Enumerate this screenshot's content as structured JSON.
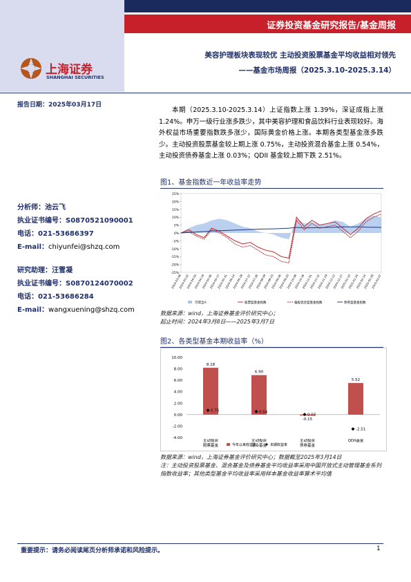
{
  "header": {
    "banner": "证券投资基金研究报告/基金周报",
    "logo_cn": "上海证券",
    "logo_en": "SHANGHAI SECURITIES",
    "title": "美容护理板块表现较优 主动投资股票基金平均收益相对领先",
    "subtitle": "——基金市场周报（2025.3.10-2025.3.14）",
    "report_date": "报告日期：2025年03月17日"
  },
  "analysts": [
    {
      "role": "分析师：池云飞",
      "cert": "执业证书编号：S0870521090001",
      "phone": "电话：021-53686397",
      "email_label": "E-mail：",
      "email": "chiyunfei@shzq.com"
    },
    {
      "role": "研究助理：汪雪凝",
      "cert": "执业证书编号：S0870124070002",
      "phone": "电话：021-53686284",
      "email_label": "E-mail：",
      "email": "wangxuening@shzq.com"
    }
  ],
  "summary": "本期（2025.3.10-2025.3.14）上证指数上涨 1.39%，深证成指上涨 1.24%。申万一级行业涨多跌少，其中美容护理和食品饮料行业表现较好。海外权益市场重要指数跌多涨少，国际黄金价格上涨。本期各类型基金涨多跌少。主动投资股票基金较上期上涨 0.75%，主动投资混合基金上涨 0.54%，主动投资债券基金上涨 0.03%；QDII 基金较上期下跌 2.51%。",
  "figure1": {
    "caption": "图1、基金指数近一年收益率走势",
    "source": "数据来源：wind，上海证券基金评价研究中心；",
    "period": "起止时间：2024年3月8日——2025年3月7日"
  },
  "figure2": {
    "caption": "图2、各类型基金本期收益率（%）",
    "source": "数据来源：wind，上海证券基金评价研究中心；数据截至2025年3月14日",
    "note": "注：主动投资股票基金、混合基金及债券基金平均收益率采用中国开放式主动管理基金系列指数收益率；其他类型基金平均收益率采用样本基金收益率算术平均值"
  },
  "footer": {
    "notice": "重要提示：请务必阅读尾页分析师承诺和风险提示。",
    "page": "1"
  },
  "chart_data": [
    {
      "type": "line",
      "categories": [
        "2024-03-08",
        "2024-03-22",
        "2024-04-03",
        "2024-04-19",
        "2024-05-06",
        "2024-05-17",
        "2024-05-31",
        "2024-06-14",
        "2024-06-28",
        "2024-07-12",
        "2024-07-26",
        "2024-08-09",
        "2024-08-23",
        "2024-09-06",
        "2024-09-20",
        "2024-10-08",
        "2024-10-18",
        "2024-11-01",
        "2024-11-15",
        "2024-11-29",
        "2024-12-13",
        "2024-12-27",
        "2025-01-10",
        "2025-01-24",
        "2025-02-14",
        "2025-02-28",
        "2025-03-07"
      ],
      "series": [
        {
          "name": "万得全A",
          "color": "#a9c4ea",
          "kind": "area",
          "values": [
            0,
            3,
            5,
            6,
            8,
            9,
            8,
            6,
            4,
            3,
            1,
            0,
            -1,
            -3,
            -4,
            9,
            6,
            7,
            5,
            6,
            8,
            7,
            4,
            6,
            9,
            11,
            10
          ]
        },
        {
          "name": "股票型基金指数",
          "color": "#c0282d",
          "values": [
            0,
            2,
            -1,
            -3,
            3,
            1,
            -2,
            -5,
            -7,
            -6,
            -9,
            -11,
            -12,
            -15,
            -16,
            10,
            4,
            8,
            5,
            6,
            7,
            3,
            -1,
            3,
            9,
            12,
            14
          ]
        },
        {
          "name": "偏股混合型基金指数",
          "color": "#c0282d",
          "dashed": true,
          "values": [
            0,
            1,
            -2,
            -4,
            2,
            0,
            -3,
            -7,
            -9,
            -8,
            -11,
            -14,
            -15,
            -18,
            -19,
            8,
            2,
            6,
            3,
            4,
            5,
            1,
            -3,
            1,
            7,
            10,
            12
          ]
        },
        {
          "name": "债券型基金指数",
          "color": "#1f3a7a",
          "values": [
            0,
            0.3,
            0.6,
            0.9,
            1.2,
            1.4,
            1.6,
            1.8,
            2,
            2.2,
            2.4,
            2.5,
            2.6,
            2.8,
            3,
            3.5,
            3.2,
            3.3,
            3.4,
            3.5,
            3.7,
            3.9,
            3.8,
            3.9,
            3.7,
            3.6,
            3.5
          ]
        }
      ],
      "ylim": [
        -25,
        25
      ],
      "yticks": [
        {
          "value": -25,
          "label": "-25%"
        },
        {
          "value": -20,
          "label": "-20%"
        },
        {
          "value": -15,
          "label": "-15%"
        },
        {
          "value": -10,
          "label": "-10%"
        },
        {
          "value": -5,
          "label": "-5%"
        },
        {
          "value": 0,
          "label": "0%"
        },
        {
          "value": 5,
          "label": "5%"
        },
        {
          "value": 10,
          "label": "10%"
        },
        {
          "value": 15,
          "label": "15%"
        },
        {
          "value": 20,
          "label": "20%"
        },
        {
          "value": 25,
          "label": "25%"
        }
      ],
      "grid": false,
      "legend": "bottom"
    },
    {
      "type": "bar",
      "categories": [
        "主动投资股票基金",
        "主动投资混合基金",
        "主动投资债券基金",
        "QDII基金"
      ],
      "series": [
        {
          "name": "今年以来收益率",
          "color": "#c0504d",
          "values": [
            8.18,
            6.9,
            -0.15,
            5.52
          ],
          "value_labels": [
            "8.18",
            "6.90",
            "-0.15",
            "5.52"
          ]
        },
        {
          "name": "本期收益率",
          "color": "#000000",
          "marker": "diamond",
          "values": [
            0.75,
            0.54,
            0.03,
            -2.51
          ]
        }
      ],
      "ylim": [
        -4,
        10
      ],
      "yticks": [
        {
          "value": -4,
          "label": "-4.00"
        },
        {
          "value": -2,
          "label": "-2.00"
        },
        {
          "value": 0,
          "label": "0.00"
        },
        {
          "value": 2,
          "label": "2.00"
        },
        {
          "value": 4,
          "label": "4.00"
        },
        {
          "value": 6,
          "label": "6.00"
        },
        {
          "value": 8,
          "label": "8.00"
        },
        {
          "value": 10,
          "label": "10.00"
        }
      ],
      "grid": false,
      "legend": "bottom"
    }
  ]
}
